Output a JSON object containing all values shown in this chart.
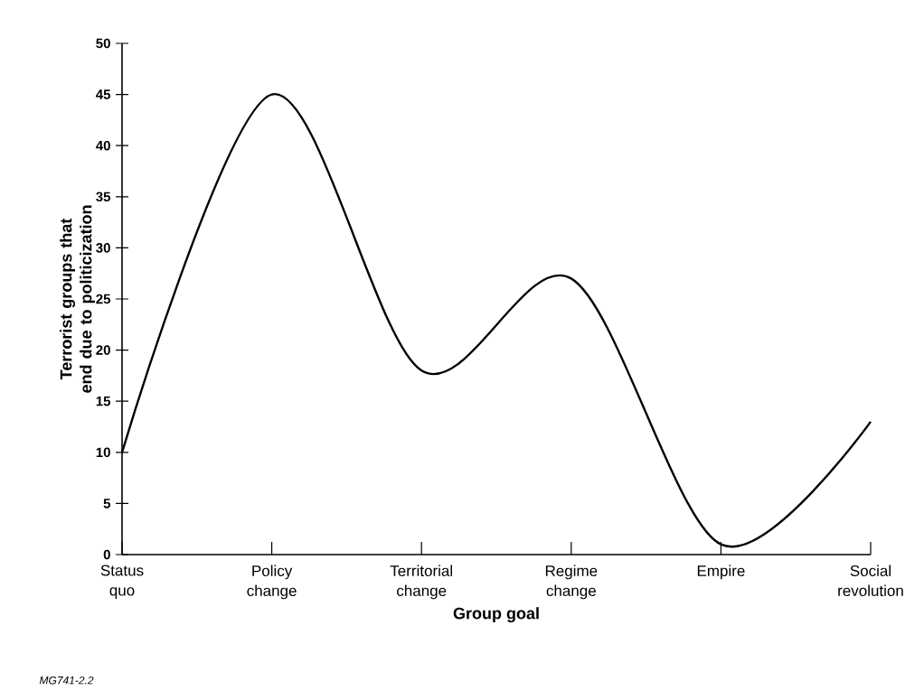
{
  "chart_data": {
    "type": "line",
    "xlabel": "Group goal",
    "ylabel": "Terrorist groups that end due to politicization",
    "categories": [
      "Status quo",
      "Policy change",
      "Territorial change",
      "Regime change",
      "Empire",
      "Social revolution"
    ],
    "values": [
      10,
      45,
      18,
      27,
      1,
      13
    ],
    "color": "#000000",
    "marker": "none",
    "ylim": [
      0,
      50
    ],
    "yticks": [
      0,
      5,
      10,
      15,
      20,
      25,
      30,
      35,
      40,
      45,
      50
    ],
    "annotations": [
      "MG741-2.2"
    ]
  }
}
